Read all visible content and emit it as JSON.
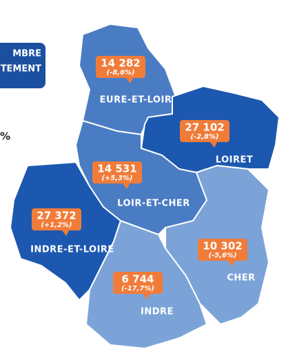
{
  "header": {
    "badge_lines": [
      "MBRE",
      "TEMENT"
    ],
    "side_text": "%"
  },
  "regions": [
    {
      "name": "EURE-ET-LOIR",
      "value": "14 282",
      "change": "(-8,6%)"
    },
    {
      "name": "LOIRET",
      "value": "27 102",
      "change": "(-2,8%)"
    },
    {
      "name": "LOIR-ET-CHER",
      "value": "14 531",
      "change": "(+5,3%)"
    },
    {
      "name": "INDRE-ET-LOIRE",
      "value": "27 372",
      "change": "(+1,2%)"
    },
    {
      "name": "CHER",
      "value": "10 302",
      "change": "(-5,6%)"
    },
    {
      "name": "INDRE",
      "value": "6 744",
      "change": "(-17,7%)"
    }
  ]
}
